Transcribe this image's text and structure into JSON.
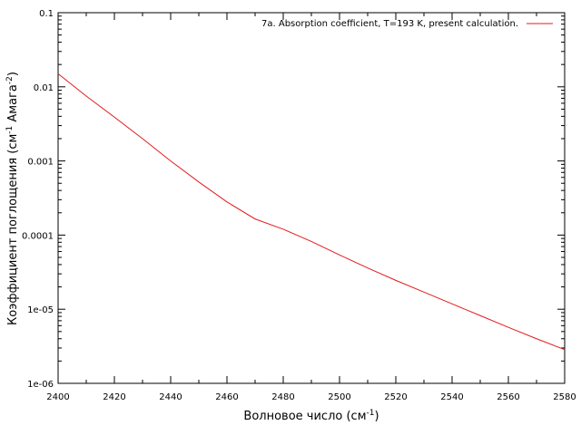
{
  "chart_data": {
    "type": "line",
    "title": "",
    "xlabel": "Волновое число (см",
    "xlabel_sup": "-1",
    "xlabel_tail": ")",
    "ylabel": "Коэффициент поглощения (см",
    "ylabel_sup1": "-1",
    "ylabel_mid": " Амага",
    "ylabel_sup2": "-2",
    "ylabel_tail": ")",
    "xlim": [
      2400,
      2580
    ],
    "ylim": [
      1e-06,
      0.1
    ],
    "yscale": "log",
    "grid": false,
    "legend_position": "top-right",
    "x_ticks": [
      {
        "value": 2400,
        "label": "2400"
      },
      {
        "value": 2420,
        "label": "2420"
      },
      {
        "value": 2440,
        "label": "2440"
      },
      {
        "value": 2460,
        "label": "2460"
      },
      {
        "value": 2480,
        "label": "2480"
      },
      {
        "value": 2500,
        "label": "2500"
      },
      {
        "value": 2520,
        "label": "2520"
      },
      {
        "value": 2540,
        "label": "2540"
      },
      {
        "value": 2560,
        "label": "2560"
      },
      {
        "value": 2580,
        "label": "2580"
      }
    ],
    "y_ticks": [
      {
        "value": 1e-06,
        "label": "1e-06"
      },
      {
        "value": 1e-05,
        "label": "1e-05"
      },
      {
        "value": 0.0001,
        "label": "0.0001"
      },
      {
        "value": 0.001,
        "label": "0.001"
      },
      {
        "value": 0.01,
        "label": "0.01"
      },
      {
        "value": 0.1,
        "label": "0.1"
      }
    ],
    "series": [
      {
        "name": "7a. Absorption coefficient, T=193 K, present calculation.",
        "color": "#e41a1c",
        "x": [
          2400,
          2410,
          2420,
          2430,
          2440,
          2450,
          2460,
          2470,
          2480,
          2490,
          2500,
          2510,
          2520,
          2530,
          2540,
          2550,
          2560,
          2570,
          2580
        ],
        "y": [
          0.015,
          0.0075,
          0.0039,
          0.002,
          0.001,
          0.00052,
          0.00028,
          0.000165,
          0.00012,
          8.2e-05,
          5.4e-05,
          3.6e-05,
          2.45e-05,
          1.7e-05,
          1.18e-05,
          8.2e-06,
          5.7e-06,
          4e-06,
          2.85e-06
        ]
      }
    ]
  }
}
